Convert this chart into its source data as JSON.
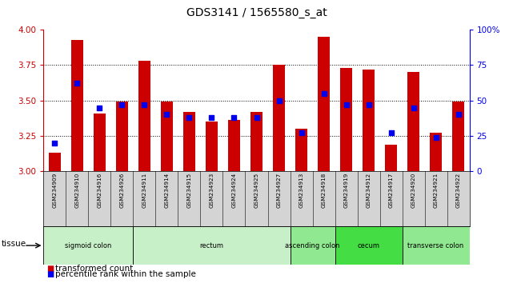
{
  "title": "GDS3141 / 1565580_s_at",
  "samples": [
    "GSM234909",
    "GSM234910",
    "GSM234916",
    "GSM234926",
    "GSM234911",
    "GSM234914",
    "GSM234915",
    "GSM234923",
    "GSM234924",
    "GSM234925",
    "GSM234927",
    "GSM234913",
    "GSM234918",
    "GSM234919",
    "GSM234912",
    "GSM234917",
    "GSM234920",
    "GSM234921",
    "GSM234922"
  ],
  "bar_values": [
    3.13,
    3.93,
    3.41,
    3.49,
    3.78,
    3.49,
    3.42,
    3.35,
    3.36,
    3.42,
    3.75,
    3.3,
    3.95,
    3.73,
    3.72,
    3.19,
    3.7,
    3.27,
    3.49
  ],
  "percentile_values": [
    20,
    62,
    45,
    47,
    47,
    40,
    38,
    38,
    38,
    38,
    50,
    27,
    55,
    47,
    47,
    27,
    45,
    24,
    40
  ],
  "tissue_groups": [
    {
      "label": "sigmoid colon",
      "start": 0,
      "end": 4,
      "color": "#c8f0c8"
    },
    {
      "label": "rectum",
      "start": 4,
      "end": 11,
      "color": "#c8f0c8"
    },
    {
      "label": "ascending colon",
      "start": 11,
      "end": 13,
      "color": "#90e890"
    },
    {
      "label": "cecum",
      "start": 13,
      "end": 16,
      "color": "#44dd44"
    },
    {
      "label": "transverse colon",
      "start": 16,
      "end": 19,
      "color": "#90e890"
    }
  ],
  "ylim_left": [
    3.0,
    4.0
  ],
  "ylim_right": [
    0,
    100
  ],
  "yticks_left": [
    3.0,
    3.25,
    3.5,
    3.75,
    4.0
  ],
  "yticks_right": [
    0,
    25,
    50,
    75,
    100
  ],
  "bar_color": "#cc0000",
  "dot_color": "#0000ee",
  "bar_width": 0.55,
  "background_color": "#ffffff",
  "tick_label_color_left": "#cc0000",
  "tick_label_color_right": "#0000ee",
  "legend_items": [
    "transformed count",
    "percentile rank within the sample"
  ],
  "xticklabel_bg": "#d4d4d4"
}
